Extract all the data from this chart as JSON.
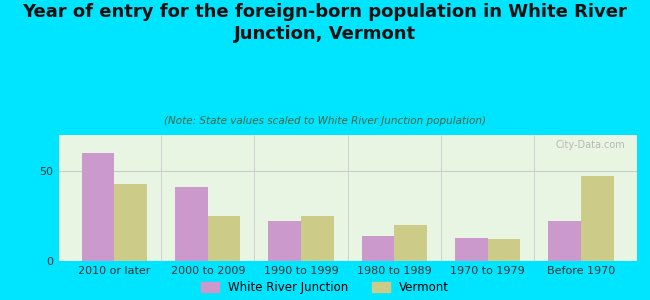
{
  "title": "Year of entry for the foreign-born population in White River\nJunction, Vermont",
  "subtitle": "(Note: State values scaled to White River Junction population)",
  "categories": [
    "2010 or later",
    "2000 to 2009",
    "1990 to 1999",
    "1980 to 1989",
    "1970 to 1979",
    "Before 1970"
  ],
  "wrj_values": [
    60,
    41,
    22,
    14,
    13,
    22
  ],
  "vt_values": [
    43,
    25,
    25,
    20,
    12,
    47
  ],
  "wrj_color": "#cc99cc",
  "vt_color": "#cccc88",
  "bg_outer": "#00e5ff",
  "bg_chart": "#e8f5e2",
  "ylim": [
    0,
    70
  ],
  "yticks": [
    0,
    50
  ],
  "legend_wrj": "White River Junction",
  "legend_vt": "Vermont",
  "watermark": "City-Data.com",
  "bar_width": 0.35,
  "title_fontsize": 13,
  "subtitle_fontsize": 7.5,
  "tick_fontsize": 8
}
